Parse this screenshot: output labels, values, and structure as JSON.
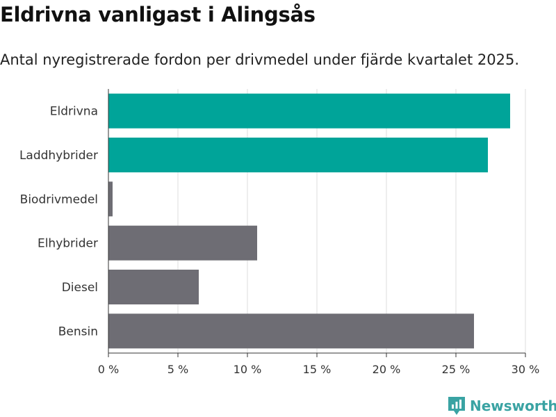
{
  "header": {
    "title": "Eldrivna vanligast i Alingsås",
    "subtitle": "Antal nyregistrerade fordon per drivmedel under fjärde kvartalet 2025."
  },
  "brand": {
    "label": "Newsworthy"
  },
  "colors": {
    "highlight": "#00a499",
    "default": "#6e6d74",
    "grid": "#dddddd",
    "brand": "#3aa3a3"
  },
  "chart_data": {
    "type": "bar",
    "orientation": "horizontal",
    "title": "Eldrivna vanligast i Alingsås",
    "subtitle": "Antal nyregistrerade fordon per drivmedel under fjärde kvartalet 2025.",
    "xlabel": "",
    "ylabel": "",
    "xlim": [
      0,
      30
    ],
    "grid": true,
    "categories": [
      "Eldrivna",
      "Laddhybrider",
      "Biodrivmedel",
      "Elhybrider",
      "Diesel",
      "Bensin"
    ],
    "values": [
      28.9,
      27.3,
      0.3,
      10.7,
      6.5,
      26.3
    ],
    "highlighted": [
      true,
      true,
      false,
      false,
      false,
      false
    ],
    "ticks": [
      0,
      5,
      10,
      15,
      20,
      25,
      30
    ],
    "tick_labels": [
      "0 %",
      "5 %",
      "10 %",
      "15 %",
      "20 %",
      "25 %",
      "30 %"
    ]
  }
}
